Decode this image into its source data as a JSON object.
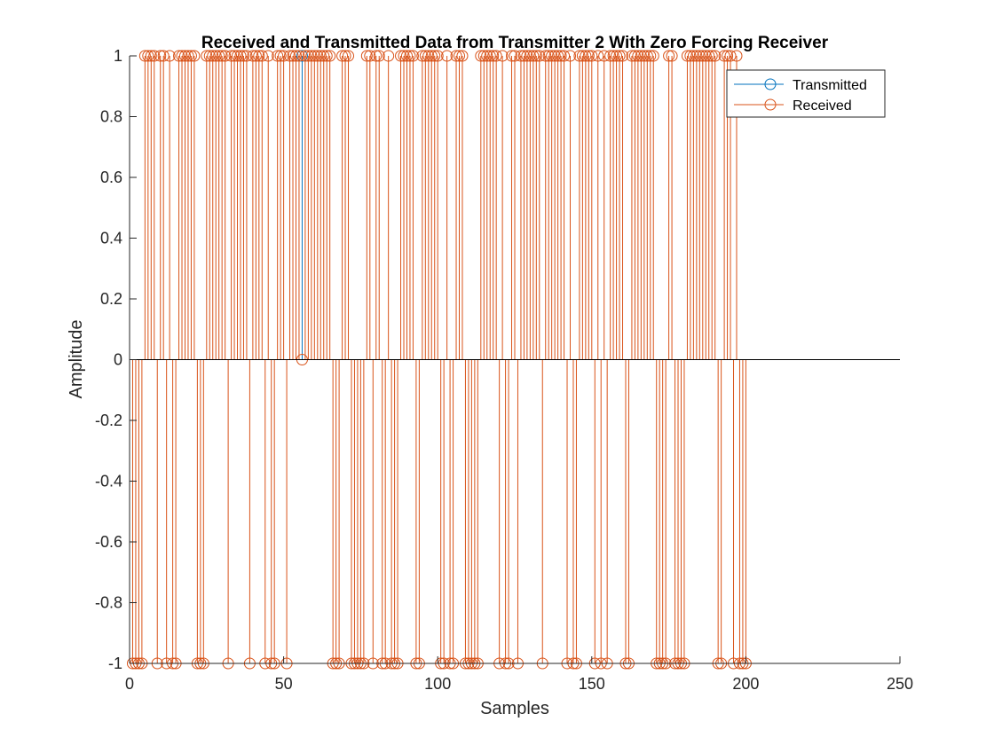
{
  "chart_data": {
    "type": "stem",
    "title": "Received and Transmitted Data from Transmitter 2 With Zero Forcing Receiver",
    "xlabel": "Samples",
    "ylabel": "Amplitude",
    "xlim": [
      0,
      250
    ],
    "ylim": [
      -1,
      1
    ],
    "xticks": [
      "0",
      "50",
      "100",
      "150",
      "200",
      "250"
    ],
    "yticks": [
      "1",
      "0.8",
      "0.6",
      "0.4",
      "0.2",
      "0",
      "-0.2",
      "-0.4",
      "-0.6",
      "-0.8",
      "-1"
    ],
    "grid": false,
    "legend_position": "top-right",
    "n_samples": 200,
    "series": [
      {
        "name": "Transmitted",
        "color": "#0072BD",
        "marker": "circle",
        "differs_from_received_at": [
          {
            "x": 56,
            "y": 1
          }
        ]
      },
      {
        "name": "Received",
        "color": "#D95319",
        "marker": "circle",
        "positive_samples": [
          5,
          6,
          7,
          8,
          10,
          11,
          13,
          16,
          17,
          18,
          19,
          20,
          21,
          25,
          26,
          27,
          28,
          29,
          30,
          31,
          33,
          34,
          35,
          36,
          37,
          38,
          40,
          41,
          42,
          43,
          45,
          48,
          49,
          50,
          52,
          53,
          54,
          55,
          57,
          58,
          59,
          60,
          61,
          62,
          63,
          64,
          65,
          69,
          70,
          71,
          77,
          78,
          80,
          81,
          84,
          88,
          89,
          90,
          91,
          92,
          95,
          96,
          97,
          98,
          99,
          100,
          103,
          106,
          107,
          108,
          114,
          115,
          116,
          117,
          118,
          119,
          121,
          124,
          125,
          127,
          128,
          129,
          130,
          131,
          132,
          133,
          135,
          136,
          137,
          138,
          139,
          140,
          141,
          143,
          146,
          147,
          148,
          149,
          150,
          152,
          154,
          156,
          157,
          158,
          159,
          160,
          163,
          164,
          165,
          166,
          167,
          168,
          169,
          170,
          175,
          176,
          181,
          182,
          183,
          184,
          185,
          186,
          187,
          188,
          189,
          190,
          193,
          194,
          195,
          197
        ],
        "zero_samples": [
          56
        ],
        "n_samples": 200
      }
    ]
  }
}
